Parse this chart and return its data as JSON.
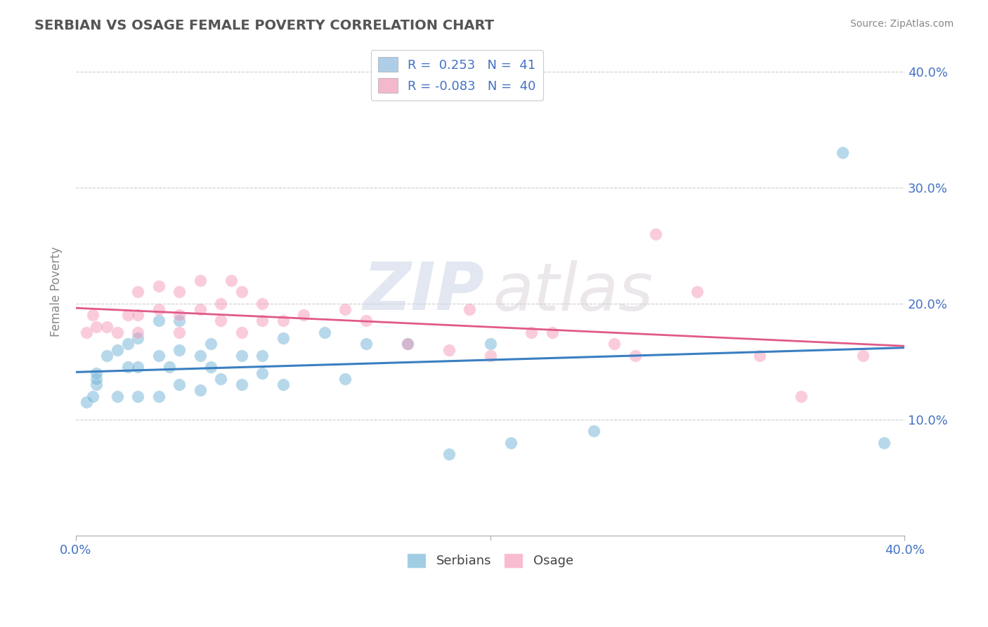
{
  "title": "SERBIAN VS OSAGE FEMALE POVERTY CORRELATION CHART",
  "source": "Source: ZipAtlas.com",
  "ylabel_label": "Female Poverty",
  "xlim": [
    0.0,
    0.4
  ],
  "ylim": [
    0.0,
    0.42
  ],
  "serbians_R": 0.253,
  "serbians_N": 41,
  "osage_R": -0.083,
  "osage_N": 40,
  "serbian_color": "#7ab8d9",
  "osage_color": "#f48fb1",
  "serbian_line_color": "#3a7fc1",
  "osage_line_color": "#e05a8a",
  "legend_serbian_color": "#aecde8",
  "legend_osage_color": "#f4b8cc",
  "serbian_scatter_x": [
    0.005,
    0.008,
    0.01,
    0.01,
    0.01,
    0.015,
    0.02,
    0.02,
    0.025,
    0.025,
    0.03,
    0.03,
    0.03,
    0.04,
    0.04,
    0.04,
    0.045,
    0.05,
    0.05,
    0.05,
    0.06,
    0.06,
    0.065,
    0.065,
    0.07,
    0.08,
    0.08,
    0.09,
    0.09,
    0.1,
    0.1,
    0.12,
    0.13,
    0.14,
    0.16,
    0.18,
    0.2,
    0.21,
    0.25,
    0.37,
    0.39
  ],
  "serbian_scatter_y": [
    0.115,
    0.12,
    0.13,
    0.135,
    0.14,
    0.155,
    0.12,
    0.16,
    0.145,
    0.165,
    0.12,
    0.145,
    0.17,
    0.12,
    0.155,
    0.185,
    0.145,
    0.13,
    0.16,
    0.185,
    0.125,
    0.155,
    0.145,
    0.165,
    0.135,
    0.13,
    0.155,
    0.14,
    0.155,
    0.13,
    0.17,
    0.175,
    0.135,
    0.165,
    0.165,
    0.07,
    0.165,
    0.08,
    0.09,
    0.33,
    0.08
  ],
  "osage_scatter_x": [
    0.005,
    0.008,
    0.01,
    0.015,
    0.02,
    0.025,
    0.03,
    0.03,
    0.03,
    0.04,
    0.04,
    0.05,
    0.05,
    0.05,
    0.06,
    0.06,
    0.07,
    0.07,
    0.075,
    0.08,
    0.08,
    0.09,
    0.09,
    0.1,
    0.11,
    0.13,
    0.14,
    0.16,
    0.18,
    0.19,
    0.2,
    0.22,
    0.23,
    0.26,
    0.27,
    0.28,
    0.3,
    0.33,
    0.35,
    0.38
  ],
  "osage_scatter_y": [
    0.175,
    0.19,
    0.18,
    0.18,
    0.175,
    0.19,
    0.175,
    0.19,
    0.21,
    0.195,
    0.215,
    0.175,
    0.19,
    0.21,
    0.195,
    0.22,
    0.185,
    0.2,
    0.22,
    0.175,
    0.21,
    0.185,
    0.2,
    0.185,
    0.19,
    0.195,
    0.185,
    0.165,
    0.16,
    0.195,
    0.155,
    0.175,
    0.175,
    0.165,
    0.155,
    0.26,
    0.21,
    0.155,
    0.12,
    0.155
  ],
  "watermark_zip": "ZIP",
  "watermark_atlas": "atlas",
  "background_color": "#ffffff",
  "grid_color": "#cccccc",
  "title_color": "#555555",
  "axis_label_color": "#888888",
  "tick_label_color": "#4472c4"
}
